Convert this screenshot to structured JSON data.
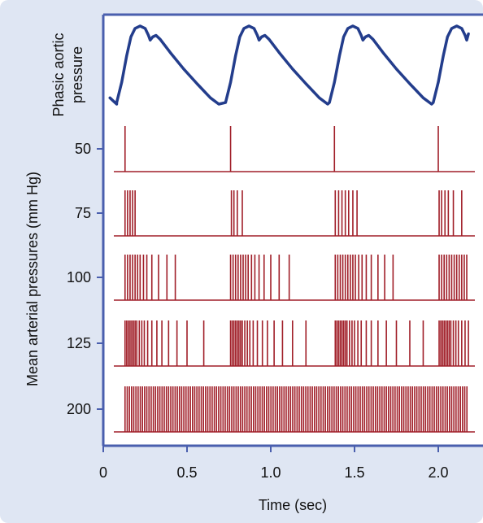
{
  "chart_data": {
    "type": "line",
    "title": "",
    "xlabel": "Time (sec)",
    "ylabel_top": "Phasic aortic pressure",
    "ylabel_bottom": "Mean arterial pressures (mm Hg)",
    "xlim": [
      0,
      2.2
    ],
    "x_ticks": [
      0,
      0.5,
      1.0,
      1.5,
      2.0
    ],
    "x_tick_labels": [
      "0",
      "0.5",
      "1.0",
      "1.5",
      "2.0"
    ],
    "colors": {
      "pressure": "#233d8c",
      "spikes": "#a01e28",
      "frame": "#4a5fae",
      "background": "#dfe6f3"
    },
    "pressure_wave": {
      "name": "Phasic aortic pressure",
      "cycle_starts": [
        0.08,
        0.73,
        1.35,
        1.97
      ],
      "cycle_period": 0.63
    },
    "spike_trains": [
      {
        "level": "50",
        "times": [
          0.13,
          0.76,
          1.38,
          2.0
        ]
      },
      {
        "level": "75",
        "times": [
          0.13,
          0.145,
          0.16,
          0.175,
          0.19,
          0.765,
          0.78,
          0.8,
          0.83,
          1.385,
          1.405,
          1.425,
          1.445,
          1.465,
          1.49,
          1.515,
          2.005,
          2.02,
          2.04,
          2.06,
          2.09,
          2.14
        ]
      },
      {
        "level": "100",
        "times": [
          0.13,
          0.145,
          0.16,
          0.175,
          0.19,
          0.205,
          0.22,
          0.24,
          0.26,
          0.29,
          0.33,
          0.38,
          0.43,
          0.76,
          0.775,
          0.79,
          0.805,
          0.82,
          0.835,
          0.85,
          0.865,
          0.885,
          0.905,
          0.93,
          0.96,
          1.0,
          1.05,
          1.11,
          1.385,
          1.4,
          1.415,
          1.43,
          1.445,
          1.46,
          1.475,
          1.49,
          1.505,
          1.525,
          1.545,
          1.57,
          1.6,
          1.64,
          1.68,
          1.73,
          2.005,
          2.02,
          2.035,
          2.05,
          2.065,
          2.08,
          2.095,
          2.11,
          2.125,
          2.14,
          2.155,
          2.17
        ]
      },
      {
        "level": "125",
        "times": [
          0.13,
          0.14,
          0.15,
          0.16,
          0.17,
          0.18,
          0.19,
          0.2,
          0.215,
          0.23,
          0.245,
          0.265,
          0.29,
          0.32,
          0.35,
          0.39,
          0.44,
          0.5,
          0.6,
          0.76,
          0.77,
          0.78,
          0.79,
          0.8,
          0.81,
          0.82,
          0.83,
          0.845,
          0.86,
          0.875,
          0.895,
          0.92,
          0.95,
          0.98,
          1.02,
          1.07,
          1.13,
          1.21,
          1.385,
          1.395,
          1.405,
          1.415,
          1.425,
          1.435,
          1.445,
          1.455,
          1.47,
          1.485,
          1.5,
          1.52,
          1.54,
          1.57,
          1.6,
          1.64,
          1.69,
          1.75,
          1.83,
          1.91,
          2.005,
          2.015,
          2.025,
          2.035,
          2.045,
          2.055,
          2.065,
          2.075,
          2.09,
          2.105,
          2.12,
          2.14,
          2.16,
          2.18
        ]
      },
      {
        "level": "200",
        "times": [
          0.13,
          0.143,
          0.156,
          0.169,
          0.182,
          0.195,
          0.208,
          0.221,
          0.234,
          0.247,
          0.26,
          0.273,
          0.286,
          0.299,
          0.312,
          0.325,
          0.338,
          0.351,
          0.364,
          0.377,
          0.39,
          0.403,
          0.416,
          0.429,
          0.442,
          0.455,
          0.468,
          0.481,
          0.494,
          0.507,
          0.52,
          0.533,
          0.546,
          0.559,
          0.572,
          0.585,
          0.598,
          0.611,
          0.624,
          0.637,
          0.65,
          0.663,
          0.676,
          0.689,
          0.702,
          0.715,
          0.728,
          0.741,
          0.754,
          0.767,
          0.78,
          0.793,
          0.806,
          0.819,
          0.832,
          0.845,
          0.858,
          0.871,
          0.884,
          0.897,
          0.91,
          0.923,
          0.936,
          0.949,
          0.962,
          0.975,
          0.988,
          1.001,
          1.014,
          1.027,
          1.04,
          1.053,
          1.066,
          1.079,
          1.092,
          1.105,
          1.118,
          1.131,
          1.144,
          1.157,
          1.17,
          1.183,
          1.196,
          1.209,
          1.222,
          1.235,
          1.248,
          1.261,
          1.274,
          1.287,
          1.3,
          1.313,
          1.326,
          1.339,
          1.352,
          1.365,
          1.378,
          1.391,
          1.404,
          1.417,
          1.43,
          1.443,
          1.456,
          1.469,
          1.482,
          1.495,
          1.508,
          1.521,
          1.534,
          1.547,
          1.56,
          1.573,
          1.586,
          1.599,
          1.612,
          1.625,
          1.638,
          1.651,
          1.664,
          1.677,
          1.69,
          1.703,
          1.716,
          1.729,
          1.742,
          1.755,
          1.768,
          1.781,
          1.794,
          1.807,
          1.82,
          1.833,
          1.846,
          1.859,
          1.872,
          1.885,
          1.898,
          1.911,
          1.924,
          1.937,
          1.95,
          1.963,
          1.976,
          1.989,
          2.002,
          2.015,
          2.028,
          2.041,
          2.054,
          2.067,
          2.08,
          2.093,
          2.106,
          2.119,
          2.132,
          2.145,
          2.158,
          2.171
        ]
      }
    ]
  }
}
